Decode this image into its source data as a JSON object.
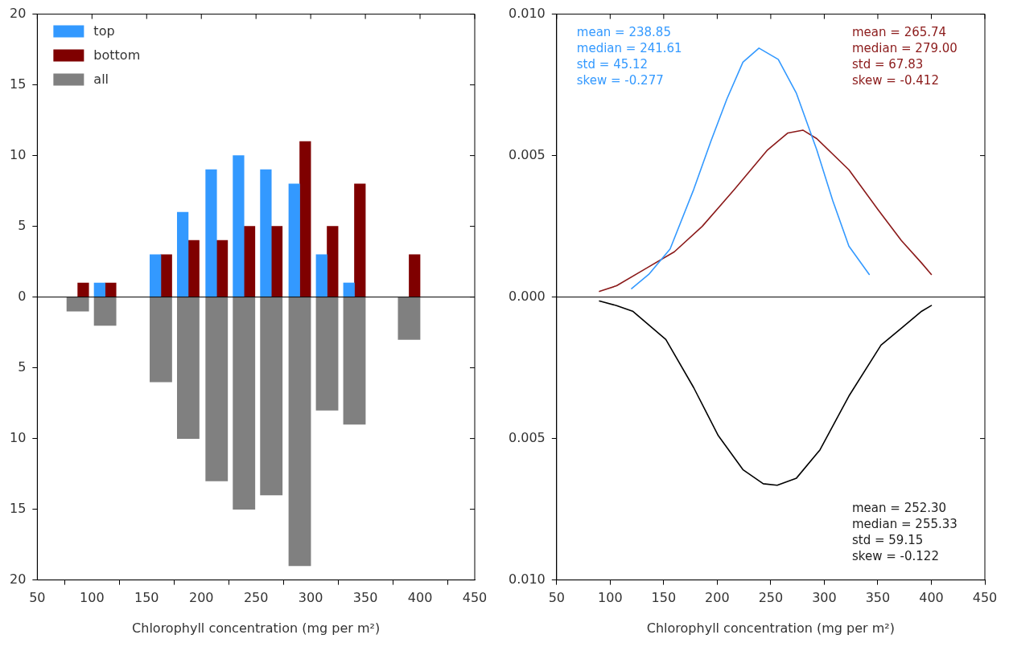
{
  "chart_data": [
    {
      "type": "bar",
      "xlabel": "Chlorophyll concentration (mg per m²)",
      "xlim": [
        50,
        450
      ],
      "xticks": [
        50,
        100,
        150,
        200,
        250,
        300,
        350,
        400,
        450
      ],
      "ylim": [
        -20,
        20
      ],
      "yticks": [
        {
          "value": -20,
          "label": "20"
        },
        {
          "value": -15,
          "label": "15"
        },
        {
          "value": -10,
          "label": "10"
        },
        {
          "value": -5,
          "label": "5"
        },
        0,
        5,
        10,
        15,
        20
      ],
      "legend": "top left",
      "grid": false,
      "ref_lines": [
        {
          "axis": "y",
          "value": 0,
          "color": "#000000"
        }
      ],
      "series": [
        {
          "name": "top",
          "color": "#3399ff",
          "x": [
            107,
            158,
            183,
            209,
            234,
            259,
            285,
            310,
            335
          ],
          "values": [
            1,
            3,
            6,
            9,
            10,
            9,
            8,
            3,
            1
          ]
        },
        {
          "name": "bottom",
          "color": "#7f0000",
          "x": [
            92,
            117,
            168,
            193,
            219,
            244,
            269,
            295,
            320,
            345,
            395
          ],
          "values": [
            1,
            1,
            3,
            4,
            4,
            5,
            5,
            11,
            5,
            8,
            3
          ]
        },
        {
          "name": "all",
          "color": "#808080",
          "x": [
            87,
            112,
            163,
            188,
            214,
            239,
            264,
            290,
            315,
            340,
            390
          ],
          "values": [
            -1,
            -2,
            -6,
            -10,
            -13,
            -15,
            -14,
            -19,
            -8,
            -9,
            -3
          ]
        }
      ]
    },
    {
      "type": "line",
      "xlabel": "Chlorophyll concentration (mg per m²)",
      "xlim": [
        50,
        450
      ],
      "xticks": [
        50,
        100,
        150,
        200,
        250,
        300,
        350,
        400,
        450
      ],
      "ylim": [
        -0.01,
        0.01
      ],
      "yticks": [
        {
          "value": -0.01,
          "label": "0.010"
        },
        {
          "value": -0.005,
          "label": "0.005"
        },
        {
          "value": 0,
          "label": "0.000"
        },
        {
          "value": 0.005,
          "label": "0.005"
        },
        {
          "value": 0.01,
          "label": "0.010"
        }
      ],
      "grid": false,
      "ref_lines": [
        {
          "axis": "y",
          "value": 0,
          "color": "#000000"
        }
      ],
      "annotations": [
        "mean = 238.85\nmedian = 241.61\nstd = 45.12\nskew = -0.277",
        "mean = 265.74\nmedian = 279.00\nstd = 67.83\nskew = -0.412",
        "mean = 252.30\nmedian = 255.33\nstd = 59.15\nskew = -0.122"
      ],
      "series": [
        {
          "color": "#3399ff",
          "x": [
            120,
            136,
            156,
            178,
            194,
            209,
            224,
            239,
            257,
            274,
            293,
            308,
            323,
            342
          ],
          "values": [
            0.0003,
            0.0008,
            0.0017,
            0.0038,
            0.0055,
            0.007,
            0.0083,
            0.0088,
            0.0084,
            0.0072,
            0.0052,
            0.0034,
            0.0018,
            0.0008
          ]
        },
        {
          "color": "#8b1a1a",
          "x": [
            90,
            106,
            133,
            160,
            186,
            216,
            247,
            266,
            280,
            293,
            323,
            350,
            372,
            391,
            400
          ],
          "values": [
            0.0002,
            0.0004,
            0.001,
            0.0016,
            0.0025,
            0.0038,
            0.0052,
            0.0058,
            0.0059,
            0.0056,
            0.0045,
            0.0031,
            0.002,
            0.0012,
            0.0008
          ]
        },
        {
          "color": "#000000",
          "x": [
            90,
            106,
            121,
            152,
            178,
            201,
            224,
            243,
            256,
            274,
            296,
            323,
            353,
            372,
            391,
            400
          ],
          "values": [
            -0.00014,
            -0.0003,
            -0.0005,
            -0.0015,
            -0.0032,
            -0.0049,
            -0.0061,
            -0.0066,
            -0.00665,
            -0.0064,
            -0.0054,
            -0.0035,
            -0.0017,
            -0.0011,
            -0.0005,
            -0.0003
          ]
        }
      ]
    }
  ]
}
